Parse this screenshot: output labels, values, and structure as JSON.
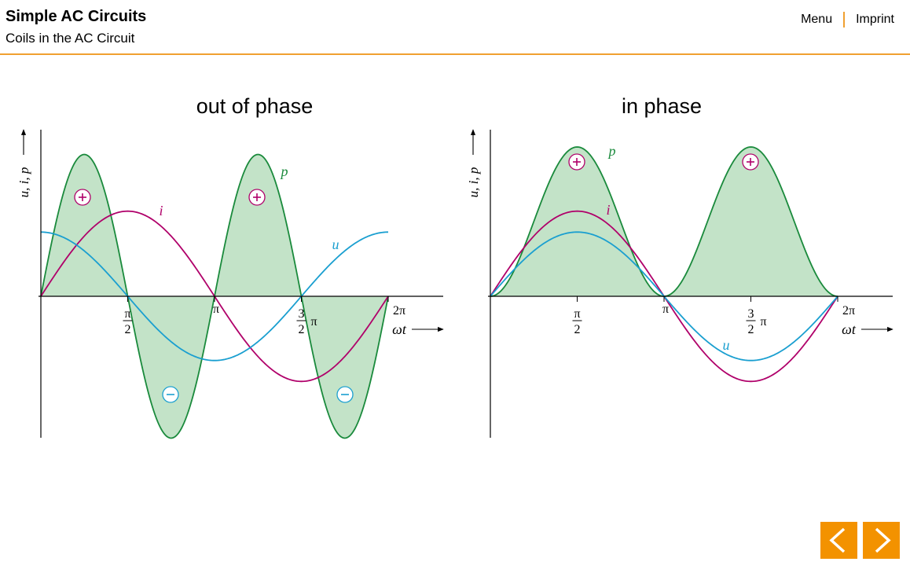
{
  "header": {
    "title": "Simple AC Circuits",
    "subtitle": "Coils in the AC Circuit",
    "menu_label": "Menu",
    "imprint_label": "Imprint"
  },
  "colors": {
    "accent": "#f39200",
    "power": "#1a8a3c",
    "power_fill": "#c3e3c8",
    "current": "#b0006a",
    "voltage": "#1a9fd0"
  },
  "chart_data": [
    {
      "type": "line",
      "title": "out of phase",
      "ylabel": "u, i, p",
      "xlabel": "ωt",
      "xticks": [
        "π/2",
        "π",
        "3/2 π",
        "2π"
      ],
      "series": [
        {
          "name": "u",
          "function": "cos(ωt)",
          "amplitude": 0.43
        },
        {
          "name": "i",
          "function": "sin(ωt)",
          "amplitude": 0.57
        },
        {
          "name": "p",
          "function": "sin(2ωt)",
          "amplitude": 0.95
        }
      ],
      "signs": [
        "+",
        "+",
        "−",
        "−"
      ]
    },
    {
      "type": "line",
      "title": "in phase",
      "ylabel": "u, i, p",
      "xlabel": "ωt",
      "xticks": [
        "π/2",
        "π",
        "3/2 π",
        "2π"
      ],
      "series": [
        {
          "name": "u",
          "function": "sin(ωt)",
          "amplitude": 0.43
        },
        {
          "name": "i",
          "function": "sin(ωt)",
          "amplitude": 0.57
        },
        {
          "name": "p",
          "function": "sin²(ωt)",
          "amplitude": 1.0
        }
      ],
      "signs": [
        "+",
        "+"
      ]
    }
  ],
  "navigation": {
    "prev_icon": "chevron-left-icon",
    "next_icon": "chevron-right-icon"
  }
}
